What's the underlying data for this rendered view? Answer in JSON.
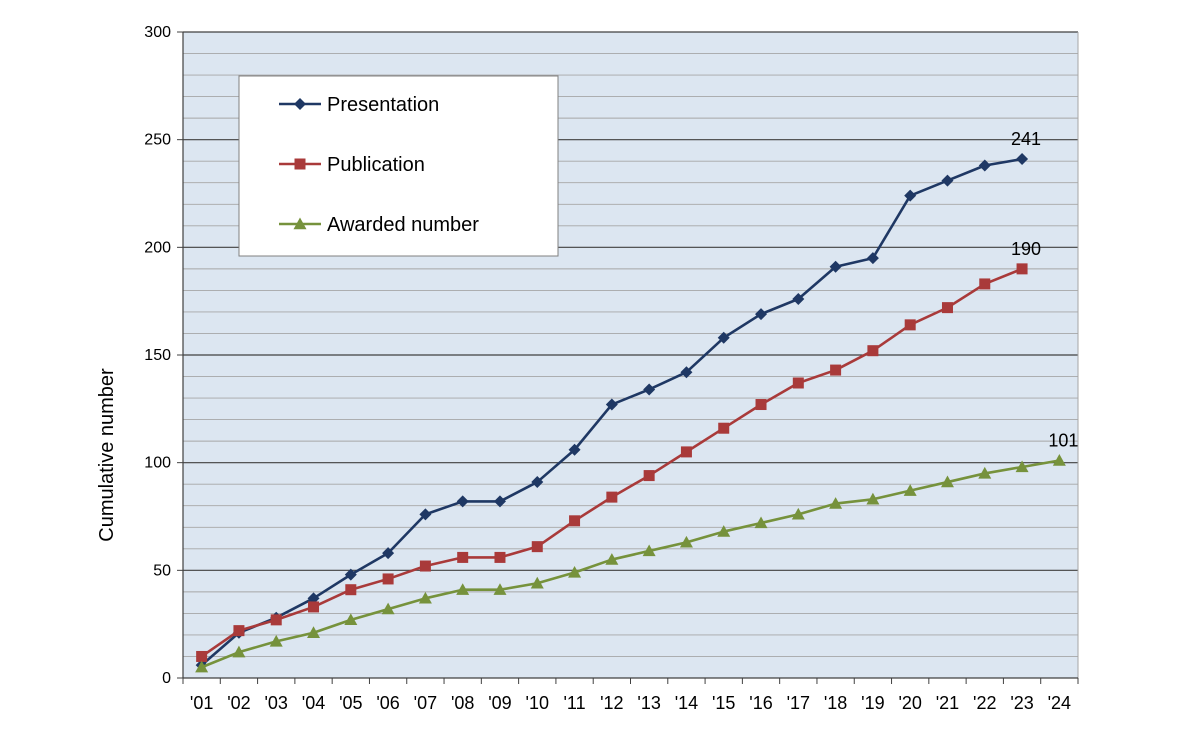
{
  "chart_data": {
    "type": "line",
    "title": "",
    "ylabel": "Cumulative number",
    "xlabel": "",
    "ylim": [
      0,
      300
    ],
    "y_major_step": 50,
    "y_minor_step": 10,
    "grid": true,
    "legend_position": "top-left",
    "background_color": "#dce6f1",
    "categories": [
      "'01",
      "'02",
      "'03",
      "'04",
      "'05",
      "'06",
      "'07",
      "'08",
      "'09",
      "'10",
      "'11",
      "'12",
      "'13",
      "'14",
      "'15",
      "'16",
      "'17",
      "'18",
      "'19",
      "'20",
      "'21",
      "'22",
      "'23",
      "'24"
    ],
    "series": [
      {
        "name": "Presentation",
        "marker": "diamond",
        "color": "#1f3864",
        "values": [
          6,
          21,
          28,
          37,
          48,
          58,
          76,
          82,
          82,
          91,
          106,
          127,
          134,
          142,
          158,
          169,
          176,
          191,
          195,
          224,
          231,
          238,
          241,
          null
        ],
        "end_label": "241"
      },
      {
        "name": "Publication",
        "marker": "square",
        "color": "#a93a3a",
        "values": [
          10,
          22,
          27,
          33,
          41,
          46,
          52,
          56,
          56,
          61,
          73,
          84,
          94,
          105,
          116,
          127,
          137,
          143,
          152,
          164,
          172,
          183,
          190,
          null
        ],
        "end_label": "190"
      },
      {
        "name": "Awarded number",
        "marker": "triangle",
        "color": "#76923c",
        "values": [
          5,
          12,
          17,
          21,
          27,
          32,
          37,
          41,
          41,
          44,
          49,
          55,
          59,
          63,
          68,
          72,
          76,
          81,
          83,
          87,
          91,
          95,
          98,
          101
        ],
        "end_label": "101"
      }
    ]
  }
}
